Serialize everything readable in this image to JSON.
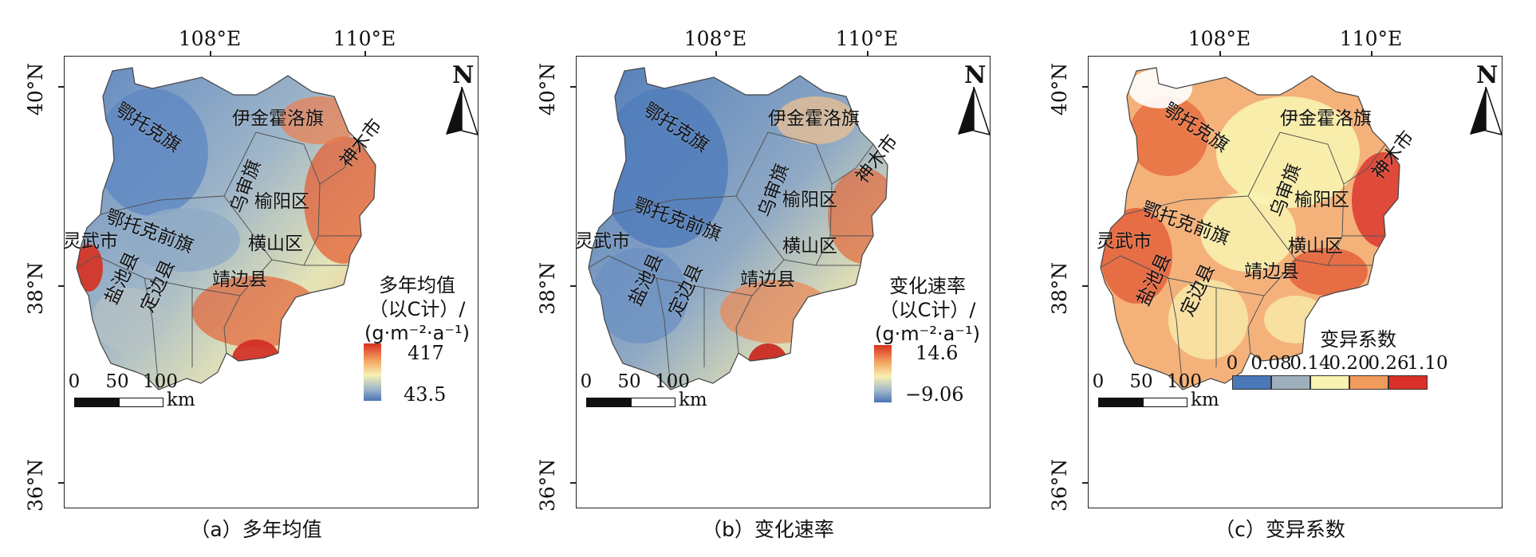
{
  "axes": {
    "lon_labels": [
      "108°E",
      "110°E"
    ],
    "lat_labels": [
      "40°N",
      "38°N",
      "36°N"
    ]
  },
  "places": [
    "鄂托克旗",
    "伊金霍洛旗",
    "神木市",
    "乌审旗",
    "榆阳区",
    "鄂托克前旗",
    "灵武市",
    "横山区",
    "盐池县",
    "定边县",
    "靖边县"
  ],
  "north_label": "N",
  "scale": {
    "ticks": [
      "0",
      "50",
      "100"
    ],
    "unit": "km"
  },
  "panels": [
    {
      "caption": "（a）多年均值",
      "legend": {
        "title_lines": [
          "多年均值",
          "（以C计）/",
          "(g·m⁻²·a⁻¹)"
        ],
        "max": "417",
        "min": "43.5"
      },
      "style": "mean"
    },
    {
      "caption": "（b）变化速率",
      "legend": {
        "title_lines": [
          "变化速率",
          "（以C计）/",
          "(g·m⁻²·a⁻¹)"
        ],
        "max": "14.6",
        "min": "−9.06"
      },
      "style": "rate"
    },
    {
      "caption": "（c）变异系数",
      "legend": {
        "title_lines": [
          "变异系数"
        ],
        "breaks": [
          "0",
          "0.08",
          "0.14",
          "0.20",
          "0.26",
          "1.10"
        ],
        "colors": [
          "#4a78b8",
          "#9fb0bd",
          "#f8f3b0",
          "#f09a5c",
          "#d9302a"
        ]
      },
      "style": "cv"
    }
  ],
  "colors": {
    "ramp_high": "#d7301f",
    "ramp_mid": "#f7f0b2",
    "ramp_low": "#4a74b4"
  }
}
